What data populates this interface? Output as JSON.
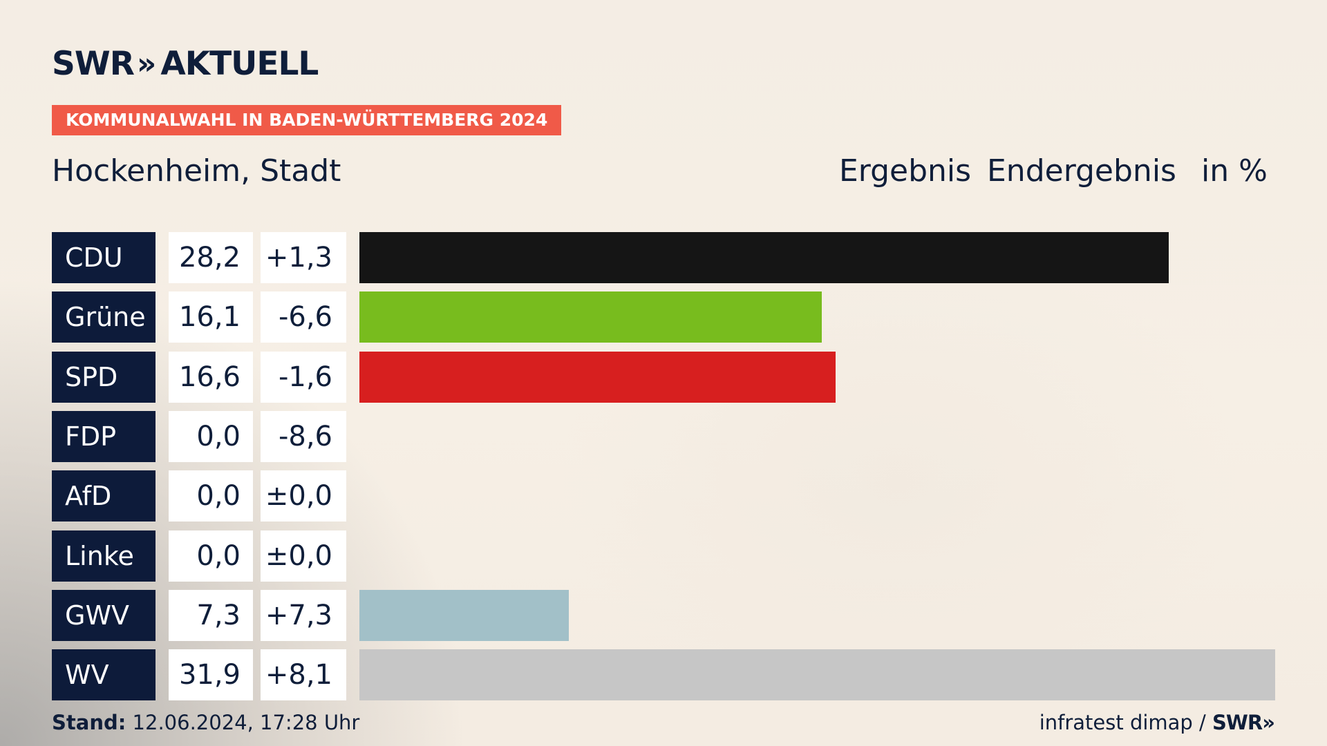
{
  "brand": {
    "logo_text": "SWR",
    "logo_chevrons": "»",
    "logo_suffix": "AKTUELL"
  },
  "header": {
    "tag": "KOMMUNALWAHL IN BADEN-WÜRTTEMBERG 2024",
    "location": "Hockenheim, Stadt",
    "col_result": "Ergebnis",
    "col_status": "Endergebnis",
    "col_unit": "in %"
  },
  "chart_data": {
    "type": "bar",
    "orientation": "horizontal",
    "title": "Hockenheim, Stadt",
    "subtitle": "Ergebnis Endergebnis in %",
    "categories": [
      "CDU",
      "Grüne",
      "SPD",
      "FDP",
      "AfD",
      "Linke",
      "GWV",
      "WV"
    ],
    "values": [
      28.2,
      16.1,
      16.6,
      0.0,
      0.0,
      0.0,
      7.3,
      31.9
    ],
    "value_labels": [
      "28,2",
      "16,1",
      "16,6",
      "0,0",
      "0,0",
      "0,0",
      "7,3",
      "31,9"
    ],
    "diff_labels": [
      "+1,3",
      "-6,6",
      "-1,6",
      "-8,6",
      "±0,0",
      "±0,0",
      "+7,3",
      "+8,1"
    ],
    "diffs": [
      1.3,
      -6.6,
      -1.6,
      -8.6,
      0.0,
      0.0,
      7.3,
      8.1
    ],
    "colors": [
      "#151515",
      "#78bc1e",
      "#d71f1f",
      "#ffe000",
      "#009ee0",
      "#be3075",
      "#a2c0c8",
      "#c6c6c6"
    ],
    "xlim": [
      0,
      31.9
    ],
    "xlabel": "",
    "ylabel": ""
  },
  "footer": {
    "stand_label": "Stand:",
    "stand_value": "12.06.2024, 17:28 Uhr",
    "source": "infratest dimap /",
    "source_brand": "SWR",
    "source_chevrons": "»"
  }
}
